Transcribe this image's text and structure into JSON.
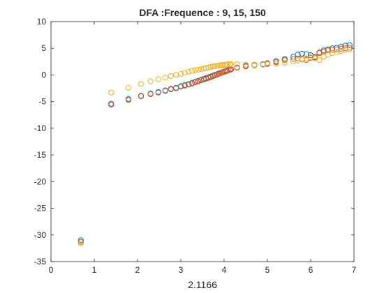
{
  "chart_data": {
    "type": "scatter",
    "title": "DFA :Frequence : 9, 15, 150",
    "xlabel": "2.1166",
    "ylabel": "",
    "xlim": [
      0,
      7
    ],
    "ylim": [
      -35,
      10
    ],
    "xticks": [
      "0",
      "1",
      "2",
      "3",
      "4",
      "5",
      "6",
      "7"
    ],
    "yticks": [
      "10",
      "5",
      "0",
      "-5",
      "-10",
      "-15",
      "-20",
      "-25",
      "-30",
      "-35"
    ],
    "grid": false,
    "legend": "none",
    "marker": "open-circle",
    "series": [
      {
        "color": "#0072bd",
        "x": [
          0.69,
          1.39,
          1.79,
          2.08,
          2.3,
          2.48,
          2.64,
          2.77,
          2.89,
          3.0,
          3.09,
          3.18,
          3.26,
          3.33,
          3.4,
          3.47,
          3.53,
          3.58,
          3.64,
          3.69,
          3.74,
          3.78,
          3.83,
          3.87,
          3.91,
          3.95,
          3.99,
          4.03,
          4.06,
          4.09,
          4.13,
          4.16,
          4.3,
          4.5,
          4.7,
          4.9,
          5.0,
          5.2,
          5.4,
          5.6,
          5.7,
          5.8,
          5.9,
          6.0,
          6.1,
          6.2,
          6.3,
          6.4,
          6.5,
          6.6,
          6.7,
          6.8,
          6.9
        ],
        "y": [
          -31.0,
          -5.4,
          -4.5,
          -3.9,
          -3.5,
          -3.2,
          -2.9,
          -2.6,
          -2.4,
          -2.1,
          -1.9,
          -1.7,
          -1.5,
          -1.3,
          -1.1,
          -0.9,
          -0.75,
          -0.6,
          -0.45,
          -0.3,
          -0.15,
          0.0,
          0.1,
          0.25,
          0.35,
          0.5,
          0.6,
          0.7,
          0.8,
          0.9,
          1.0,
          1.1,
          1.4,
          1.7,
          1.9,
          2.0,
          2.2,
          2.6,
          3.0,
          3.4,
          3.8,
          4.0,
          3.9,
          3.7,
          3.3,
          4.2,
          4.6,
          4.8,
          5.0,
          5.1,
          5.3,
          5.5,
          5.6
        ]
      },
      {
        "color": "#d95319",
        "x": [
          0.69,
          1.39,
          1.79,
          2.08,
          2.3,
          2.48,
          2.64,
          2.77,
          2.89,
          3.0,
          3.09,
          3.18,
          3.26,
          3.33,
          3.4,
          3.47,
          3.53,
          3.58,
          3.64,
          3.69,
          3.74,
          3.78,
          3.83,
          3.87,
          3.91,
          3.95,
          3.99,
          4.03,
          4.06,
          4.09,
          4.13,
          4.16,
          4.3,
          4.5,
          4.7,
          4.9,
          5.0,
          5.2,
          5.4,
          5.6,
          5.7,
          5.8,
          5.9,
          6.0,
          6.1,
          6.2,
          6.3,
          6.4,
          6.5,
          6.6,
          6.7,
          6.8,
          6.9
        ],
        "y": [
          -31.3,
          -5.6,
          -4.7,
          -4.0,
          -3.6,
          -3.3,
          -3.0,
          -2.7,
          -2.5,
          -2.2,
          -2.0,
          -1.8,
          -1.6,
          -1.4,
          -1.2,
          -1.0,
          -0.85,
          -0.7,
          -0.55,
          -0.4,
          -0.25,
          -0.1,
          0.05,
          0.2,
          0.3,
          0.45,
          0.55,
          0.65,
          0.75,
          0.85,
          0.95,
          1.05,
          1.35,
          1.6,
          1.8,
          1.95,
          2.1,
          2.4,
          2.8,
          3.0,
          3.1,
          3.0,
          2.8,
          3.2,
          3.4,
          4.1,
          4.4,
          4.6,
          4.7,
          4.8,
          4.9,
          5.0,
          5.1
        ]
      },
      {
        "color": "#edb120",
        "x": [
          0.69,
          1.39,
          1.79,
          2.08,
          2.3,
          2.48,
          2.64,
          2.77,
          2.89,
          3.0,
          3.09,
          3.18,
          3.26,
          3.33,
          3.4,
          3.47,
          3.53,
          3.58,
          3.64,
          3.69,
          3.74,
          3.78,
          3.83,
          3.87,
          3.91,
          3.95,
          3.99,
          4.03,
          4.06,
          4.09,
          4.13,
          4.16,
          4.3,
          4.5,
          4.7,
          4.9,
          5.0,
          5.2,
          5.4,
          5.6,
          5.7,
          5.8,
          5.9,
          6.0,
          6.1,
          6.2,
          6.3,
          6.4,
          6.5,
          6.6,
          6.7,
          6.8,
          6.9
        ],
        "y": [
          -31.6,
          -3.3,
          -2.4,
          -1.7,
          -1.2,
          -0.8,
          -0.5,
          -0.2,
          0.0,
          0.2,
          0.4,
          0.6,
          0.75,
          0.9,
          1.0,
          1.1,
          1.2,
          1.3,
          1.4,
          1.5,
          1.6,
          1.65,
          1.7,
          1.75,
          1.8,
          1.85,
          1.9,
          1.9,
          1.95,
          2.0,
          2.0,
          2.0,
          2.0,
          1.95,
          1.9,
          1.9,
          2.0,
          2.1,
          2.3,
          2.5,
          2.7,
          2.9,
          3.1,
          3.3,
          3.1,
          2.8,
          3.4,
          3.8,
          4.1,
          4.3,
          4.5,
          4.7,
          4.8
        ]
      }
    ]
  }
}
